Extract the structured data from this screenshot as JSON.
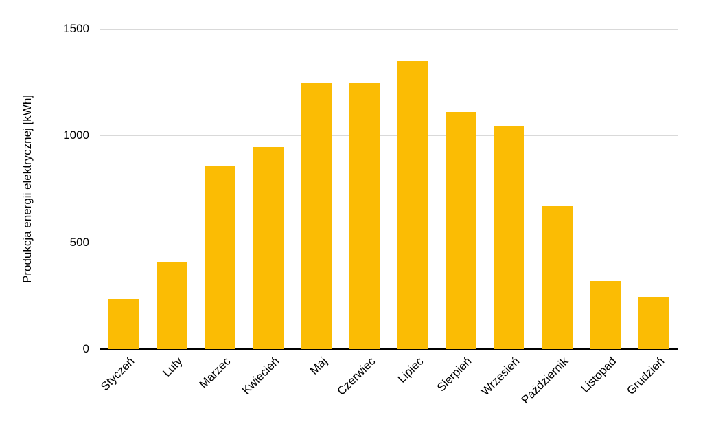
{
  "chart_data": {
    "type": "bar",
    "title": "",
    "xlabel": "",
    "ylabel": "Produkcja energii elektrycznej [kWh]",
    "categories": [
      "Styczeń",
      "Luty",
      "Marzec",
      "Kwiecień",
      "Maj",
      "Czerwiec",
      "Lipiec",
      "Sierpień",
      "Wrzesień",
      "Październik",
      "Listopad",
      "Grudzień"
    ],
    "values": [
      235,
      410,
      855,
      945,
      1245,
      1245,
      1350,
      1110,
      1045,
      670,
      320,
      245
    ],
    "ylim": [
      0,
      1500
    ],
    "yticks": [
      0,
      500,
      1000,
      1500
    ],
    "bar_color": "#FBBC04",
    "grid": "horizontal",
    "legend": "none",
    "background": "#ffffff"
  }
}
